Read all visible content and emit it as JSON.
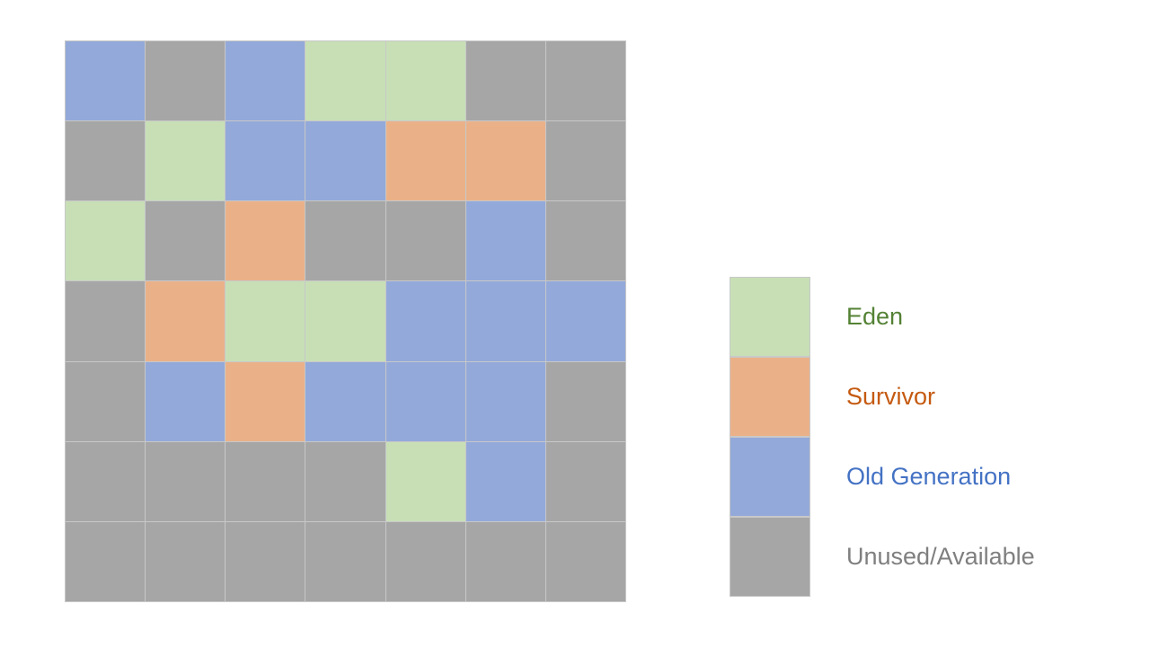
{
  "colors": {
    "eden": "#c8dfb6",
    "survivor": "#eab189",
    "old": "#93a9d9",
    "unused": "#a6a6a6"
  },
  "grid": [
    [
      "old",
      "unused",
      "old",
      "eden",
      "eden",
      "unused",
      "unused"
    ],
    [
      "unused",
      "eden",
      "old",
      "old",
      "survivor",
      "survivor",
      "unused"
    ],
    [
      "eden",
      "unused",
      "survivor",
      "unused",
      "unused",
      "old",
      "unused"
    ],
    [
      "unused",
      "survivor",
      "eden",
      "eden",
      "old",
      "old",
      "old"
    ],
    [
      "unused",
      "old",
      "survivor",
      "old",
      "old",
      "old",
      "unused"
    ],
    [
      "unused",
      "unused",
      "unused",
      "unused",
      "eden",
      "old",
      "unused"
    ],
    [
      "unused",
      "unused",
      "unused",
      "unused",
      "unused",
      "unused",
      "unused"
    ]
  ],
  "legend": [
    {
      "key": "eden",
      "label": "Eden",
      "text_color": "#548235"
    },
    {
      "key": "survivor",
      "label": "Survivor",
      "text_color": "#c55a11"
    },
    {
      "key": "old",
      "label": "Old Generation",
      "text_color": "#4472c4"
    },
    {
      "key": "unused",
      "label": "Unused/Available",
      "text_color": "#7f7f7f"
    }
  ]
}
